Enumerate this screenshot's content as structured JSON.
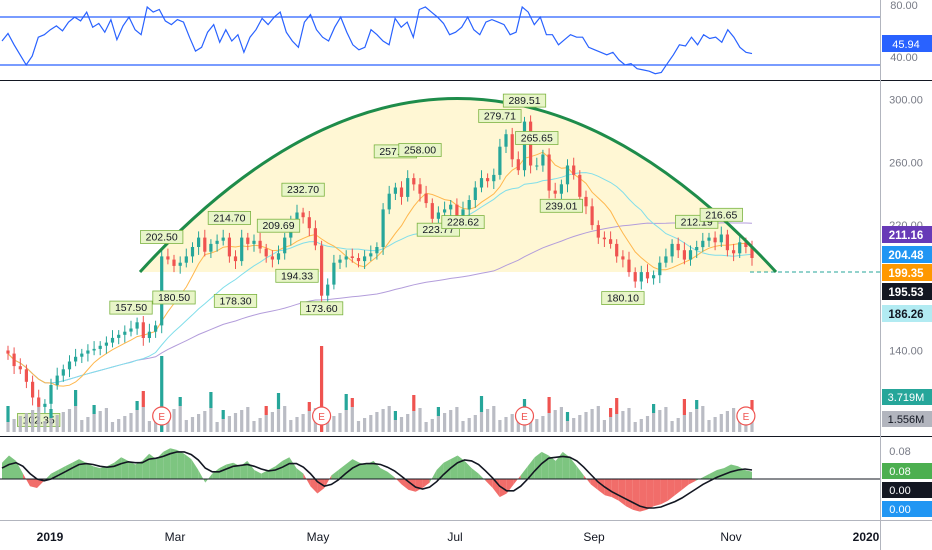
{
  "chart_data": [
    {
      "type": "line",
      "name": "rsi-pane",
      "y_ticks": [
        "80.00",
        "40.00"
      ],
      "levels": [
        70,
        30
      ],
      "last_value": "45.94",
      "ylim": [
        24,
        86
      ],
      "series": [
        {
          "values": [
            55,
            61,
            52,
            44,
            36,
            43,
            58,
            60,
            64,
            67,
            63,
            70,
            74,
            71,
            78,
            66,
            69,
            62,
            72,
            56,
            67,
            74,
            64,
            60,
            82,
            78,
            80,
            71,
            68,
            72,
            70,
            58,
            47,
            50,
            62,
            68,
            54,
            64,
            55,
            60,
            46,
            58,
            64,
            73,
            68,
            74,
            78,
            62,
            55,
            50,
            70,
            76,
            64,
            58,
            55,
            66,
            74,
            62,
            52,
            48,
            50,
            64,
            60,
            55,
            52,
            73,
            66,
            70,
            58,
            80,
            82,
            78,
            74,
            69,
            60,
            62,
            66,
            74,
            64,
            60,
            70,
            72,
            70,
            68,
            60,
            62,
            82,
            78,
            68,
            74,
            60,
            60,
            52,
            56,
            60,
            58,
            58,
            50,
            48,
            46,
            44,
            46,
            40,
            36,
            37,
            33,
            32,
            31,
            29,
            30,
            37,
            44,
            52,
            51,
            58,
            52,
            60,
            57,
            58,
            54,
            64,
            58,
            50,
            46,
            45
          ]
        }
      ],
      "color": "#2962ff"
    },
    {
      "type": "candlestick",
      "name": "price-pane",
      "x_tick_labels": [
        "2019",
        "Mar",
        "May",
        "Jul",
        "Sep",
        "Nov",
        "2020"
      ],
      "y_ticks": [
        "300.00",
        "260.00",
        "220.00",
        "140.00"
      ],
      "ylim": [
        88,
        310
      ],
      "close": [
        138,
        130,
        128,
        120,
        110,
        104,
        106,
        118,
        124,
        128,
        133,
        136,
        138,
        140,
        141,
        143,
        145,
        148,
        150,
        152,
        154,
        158,
        148,
        152,
        156,
        200,
        198,
        194,
        196,
        200,
        206,
        212,
        203,
        208,
        210,
        212,
        200,
        197,
        212,
        208,
        210,
        205,
        200,
        198,
        202,
        212,
        222,
        228,
        225,
        218,
        207,
        175,
        182,
        196,
        198,
        200,
        199,
        197,
        200,
        202,
        206,
        230,
        240,
        244,
        238,
        250,
        246,
        240,
        234,
        224,
        228,
        230,
        233,
        226,
        230,
        236,
        244,
        250,
        248,
        252,
        270,
        278,
        262,
        255,
        286,
        258,
        258,
        265,
        242,
        240,
        246,
        258,
        252,
        238,
        232,
        220,
        212,
        211,
        208,
        200,
        198,
        190,
        184,
        190,
        186,
        188,
        196,
        200,
        208,
        204,
        198,
        204,
        206,
        210,
        212,
        209,
        214,
        204,
        202,
        209,
        206,
        199
      ],
      "annotations": [
        "102.35",
        "157.50",
        "202.50",
        "180.50",
        "214.70",
        "178.30",
        "209.69",
        "194.33",
        "232.70",
        "173.60",
        "257.10",
        "258.00",
        "223.77",
        "228.62",
        "279.71",
        "289.51",
        "265.65",
        "239.01",
        "180.10",
        "212.19",
        "216.65"
      ],
      "price_labels": [
        {
          "text": "211.16",
          "color": "#673ab7"
        },
        {
          "text": "204.48",
          "color": "#2196f3"
        },
        {
          "text": "199.35",
          "color": "#ff9800"
        },
        {
          "text": "195.53",
          "color": "#131722"
        },
        {
          "text": "186.26",
          "color": "#b2ebf2"
        }
      ],
      "pattern": "rounding top (arc)",
      "pattern_color": "#1e8c4a"
    },
    {
      "type": "bar",
      "name": "volume-pane",
      "labels": [
        "3.719M",
        "1.556M"
      ],
      "earnings_marker": "E"
    },
    {
      "type": "area",
      "name": "oscillator-pane",
      "y_ticks": [
        "0.08",
        "0.08",
        "0.00",
        "0.00"
      ],
      "ylim": [
        -0.42,
        0.42
      ],
      "series": [
        {
          "values": [
            0.18,
            0.26,
            0.2,
            0.06,
            -0.08,
            -0.1,
            -0.02,
            0.06,
            0.1,
            0.14,
            0.18,
            0.22,
            0.18,
            0.14,
            0.12,
            0.14,
            0.18,
            0.24,
            0.2,
            0.16,
            0.2,
            0.28,
            0.22,
            0.3,
            0.34,
            0.32,
            0.28,
            0.22,
            0.1,
            -0.04,
            0.06,
            0.12,
            0.16,
            0.18,
            0.14,
            0.2,
            0.1,
            0.06,
            0.1,
            0.14,
            0.2,
            0.24,
            0.12,
            0.06,
            -0.08,
            -0.16,
            -0.1,
            0.04,
            0.1,
            0.16,
            0.22,
            0.18,
            0.16,
            0.2,
            0.12,
            0.08,
            0.02,
            -0.06,
            -0.12,
            -0.14,
            -0.1,
            -0.04,
            0.1,
            0.18,
            0.22,
            0.26,
            0.2,
            0.12,
            0.06,
            -0.02,
            -0.1,
            -0.2,
            -0.16,
            -0.06,
            0.04,
            0.14,
            0.24,
            0.3,
            0.26,
            0.2,
            0.3,
            0.24,
            0.14,
            0.04,
            -0.06,
            -0.12,
            -0.18,
            -0.2,
            -0.24,
            -0.3,
            -0.34,
            -0.36,
            -0.34,
            -0.3,
            -0.28,
            -0.24,
            -0.18,
            -0.12,
            -0.06,
            -0.02,
            0.02,
            0.06,
            0.1,
            0.12,
            0.16,
            0.14,
            0.1,
            0.08
          ]
        },
        {
          "values": [
            0.12,
            0.16,
            0.18,
            0.14,
            0.06,
            0.0,
            -0.02,
            0.0,
            0.04,
            0.08,
            0.12,
            0.16,
            0.17,
            0.16,
            0.14,
            0.13,
            0.14,
            0.17,
            0.19,
            0.18,
            0.18,
            0.22,
            0.23,
            0.25,
            0.28,
            0.3,
            0.3,
            0.27,
            0.21,
            0.12,
            0.08,
            0.08,
            0.11,
            0.14,
            0.15,
            0.16,
            0.14,
            0.11,
            0.09,
            0.1,
            0.13,
            0.17,
            0.17,
            0.13,
            0.06,
            -0.03,
            -0.08,
            -0.06,
            -0.01,
            0.06,
            0.12,
            0.16,
            0.17,
            0.17,
            0.16,
            0.13,
            0.09,
            0.03,
            -0.03,
            -0.09,
            -0.11,
            -0.09,
            -0.03,
            0.05,
            0.12,
            0.18,
            0.21,
            0.2,
            0.16,
            0.09,
            0.01,
            -0.08,
            -0.13,
            -0.13,
            -0.08,
            0.0,
            0.09,
            0.17,
            0.23,
            0.24,
            0.25,
            0.24,
            0.2,
            0.13,
            0.05,
            -0.03,
            -0.09,
            -0.14,
            -0.18,
            -0.22,
            -0.26,
            -0.3,
            -0.32,
            -0.32,
            -0.31,
            -0.28,
            -0.25,
            -0.21,
            -0.16,
            -0.11,
            -0.06,
            -0.02,
            0.02,
            0.05,
            0.08,
            0.1,
            0.11,
            0.1
          ]
        }
      ]
    }
  ]
}
